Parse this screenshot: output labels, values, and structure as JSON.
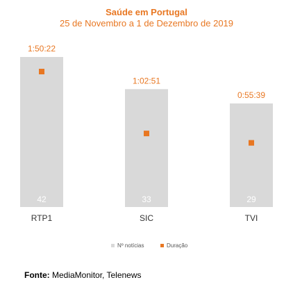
{
  "header": {
    "title": "Saúde em Portugal",
    "subtitle": "25 de Novembro a 1 de Dezembro de 2019"
  },
  "chart_data": {
    "type": "bar",
    "categories": [
      "RTP1",
      "SIC",
      "TVI"
    ],
    "series": [
      {
        "name": "Nº notícias",
        "values": [
          42,
          33,
          29
        ],
        "color": "#d9d9d9",
        "label_color": "#ffffff"
      },
      {
        "name": "Duração",
        "values": [
          "1:50:22",
          "1:02:51",
          "0:55:39"
        ],
        "seconds": [
          6622,
          3771,
          3339
        ],
        "color": "#e87722"
      }
    ],
    "title": "Saúde em Portugal",
    "subtitle": "25 de Novembro a 1 de Dezembro de 2019",
    "xlabel": "",
    "ylabel": "",
    "grid": false,
    "legend_position": "bottom"
  },
  "legend": {
    "items": [
      "Nº notícias",
      "Duração"
    ]
  },
  "source": {
    "label": "Fonte:",
    "text": "MediaMonitor, Telenews"
  },
  "colors": {
    "accent": "#e87722",
    "bar": "#d9d9d9"
  }
}
